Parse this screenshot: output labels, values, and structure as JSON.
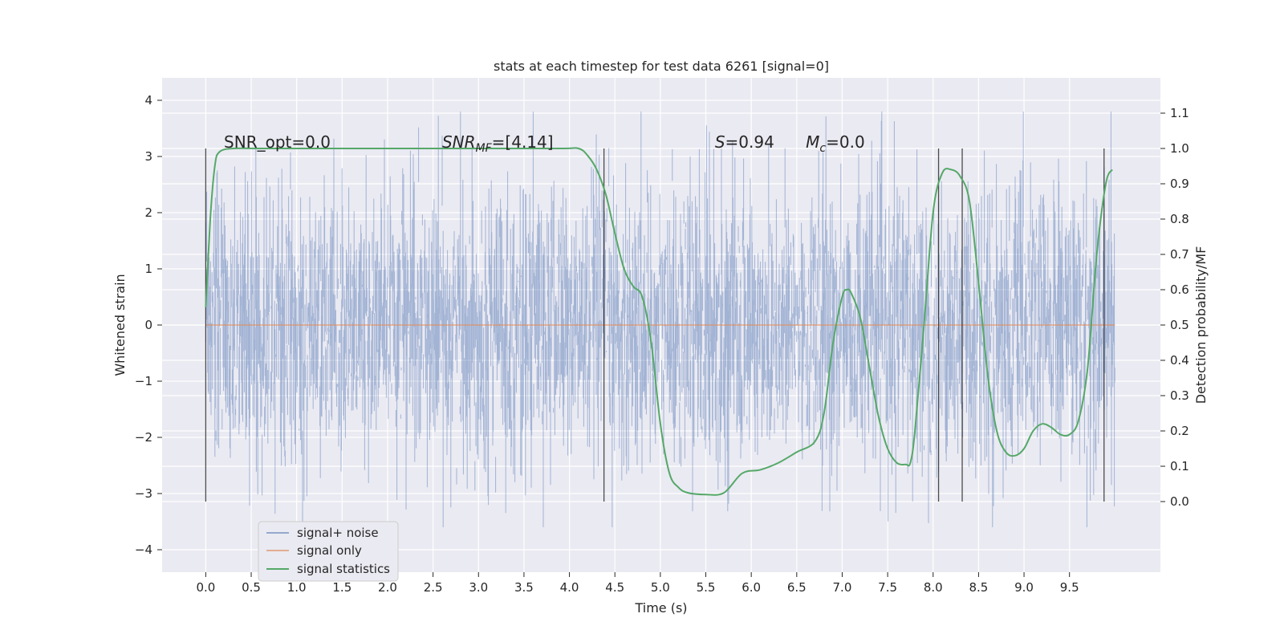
{
  "chart_data": {
    "type": "line",
    "title": "stats at each timestep for test data 6261 [signal=0]",
    "xlabel": "Time (s)",
    "ylabel_left": "Whitened strain",
    "ylabel_right": "Detection probability/MF",
    "xlim": [
      -0.48,
      10.5
    ],
    "ylim_left": [
      -4.4,
      4.4
    ],
    "ylim_right": [
      -0.2,
      1.2
    ],
    "x_ticks": [
      "0.0",
      "0.5",
      "1.0",
      "1.5",
      "2.0",
      "2.5",
      "3.0",
      "3.5",
      "4.0",
      "4.5",
      "5.0",
      "5.5",
      "6.0",
      "6.5",
      "7.0",
      "7.5",
      "8.0",
      "8.5",
      "9.0",
      "9.5"
    ],
    "x_tick_values": [
      0,
      0.5,
      1,
      1.5,
      2,
      2.5,
      3,
      3.5,
      4,
      4.5,
      5,
      5.5,
      6,
      6.5,
      7,
      7.5,
      8,
      8.5,
      9,
      9.5
    ],
    "y_ticks_left": [
      "−4",
      "−3",
      "−2",
      "−1",
      "0",
      "1",
      "2",
      "3",
      "4"
    ],
    "y_tick_values_left": [
      -4,
      -3,
      -2,
      -1,
      0,
      1,
      2,
      3,
      4
    ],
    "y_ticks_right": [
      "0.0",
      "0.1",
      "0.2",
      "0.3",
      "0.4",
      "0.5",
      "0.6",
      "0.7",
      "0.8",
      "0.9",
      "1.0",
      "1.1"
    ],
    "y_tick_values_right": [
      0,
      0.1,
      0.2,
      0.3,
      0.4,
      0.5,
      0.6,
      0.7,
      0.8,
      0.9,
      1.0,
      1.1
    ],
    "grid": true,
    "legend_position": "lower-left",
    "series": [
      {
        "name": "signal+ noise",
        "color": "#4c72b0",
        "axis": "left",
        "kind": "noise",
        "x_range": [
          0,
          10.0
        ],
        "envelope": [
          -3.6,
          3.8
        ]
      },
      {
        "name": "signal only",
        "color": "#dd8452",
        "axis": "left",
        "kind": "constant",
        "x_range": [
          0,
          10.0
        ],
        "value": 0
      },
      {
        "name": "signal statistics",
        "color": "#55a868",
        "axis": "right",
        "x": [
          0.0,
          0.05,
          0.1,
          0.15,
          0.3,
          0.6,
          1.0,
          2.0,
          3.0,
          3.9,
          4.1,
          4.2,
          4.3,
          4.4,
          4.5,
          4.6,
          4.7,
          4.8,
          4.9,
          5.0,
          5.1,
          5.2,
          5.3,
          5.5,
          5.7,
          5.9,
          6.1,
          6.3,
          6.5,
          6.7,
          6.8,
          6.9,
          7.0,
          7.05,
          7.1,
          7.2,
          7.3,
          7.4,
          7.5,
          7.6,
          7.7,
          7.75,
          7.8,
          7.9,
          8.0,
          8.1,
          8.2,
          8.3,
          8.4,
          8.5,
          8.6,
          8.7,
          8.8,
          8.9,
          9.0,
          9.1,
          9.2,
          9.3,
          9.4,
          9.5,
          9.6,
          9.7,
          9.8,
          9.9,
          9.97
        ],
        "y": [
          0.55,
          0.8,
          0.95,
          0.99,
          1.0,
          1.0,
          1.0,
          1.0,
          1.0,
          1.0,
          1.0,
          0.98,
          0.94,
          0.87,
          0.76,
          0.66,
          0.61,
          0.58,
          0.45,
          0.22,
          0.08,
          0.04,
          0.025,
          0.02,
          0.025,
          0.08,
          0.09,
          0.11,
          0.14,
          0.17,
          0.25,
          0.45,
          0.58,
          0.6,
          0.59,
          0.52,
          0.38,
          0.24,
          0.15,
          0.11,
          0.105,
          0.11,
          0.2,
          0.5,
          0.82,
          0.93,
          0.94,
          0.92,
          0.85,
          0.62,
          0.36,
          0.2,
          0.14,
          0.13,
          0.15,
          0.2,
          0.22,
          0.21,
          0.19,
          0.19,
          0.23,
          0.38,
          0.7,
          0.9,
          0.94
        ]
      }
    ],
    "vertical_markers": [
      0.0,
      4.38,
      8.06,
      8.32,
      9.88
    ],
    "annotations": [
      {
        "text": "SNR_opt=0.0",
        "x": 0.2,
        "y_right": 1.0
      },
      {
        "text": "SNR",
        "sub": "MF",
        "suffix": "=[4.14]",
        "italic": true,
        "x": 2.6,
        "y_right": 1.0
      },
      {
        "text": "S",
        "suffix": "=0.94",
        "italic": true,
        "x": 5.6,
        "y_right": 1.0
      },
      {
        "text": "M",
        "sub": "c",
        "suffix": "=0.0",
        "italic": true,
        "x": 6.6,
        "y_right": 1.0
      }
    ],
    "colors": {
      "plot_bg": "#eaeaf2",
      "grid": "#ffffff",
      "marker_line": "#2f2f2f"
    }
  }
}
